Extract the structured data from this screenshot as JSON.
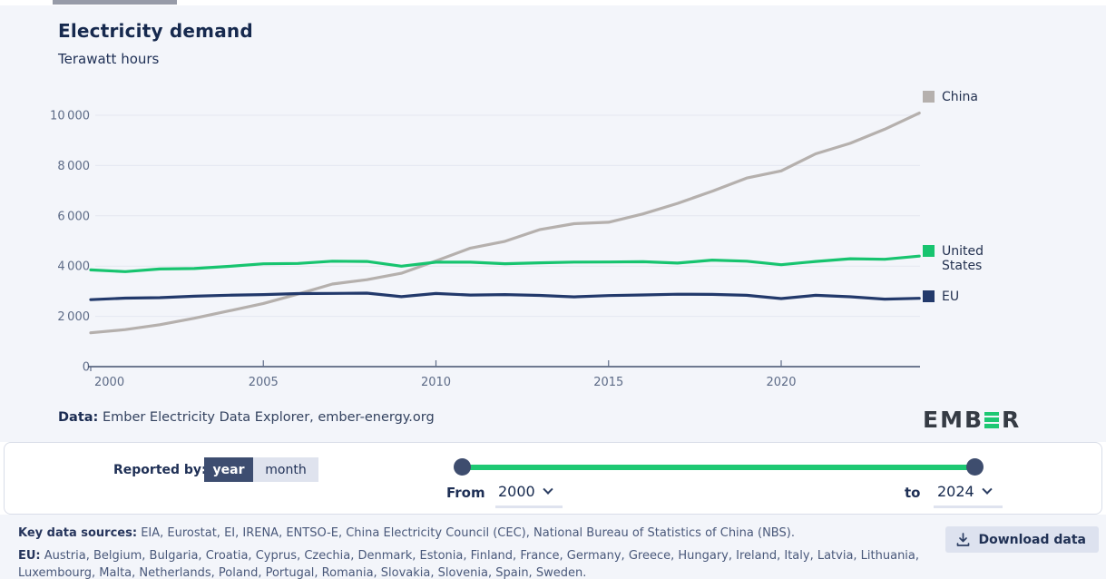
{
  "chart_data": {
    "type": "line",
    "title": "Electricity demand",
    "subtitle": "Terawatt hours",
    "xlabel": "",
    "ylabel": "Terawatt hours",
    "x": [
      2000,
      2001,
      2002,
      2003,
      2004,
      2005,
      2006,
      2007,
      2008,
      2009,
      2010,
      2011,
      2012,
      2013,
      2014,
      2015,
      2016,
      2017,
      2018,
      2019,
      2020,
      2021,
      2022,
      2023,
      2024
    ],
    "series": [
      {
        "name": "China",
        "color": "#b5b0ad",
        "values": [
          1347,
          1472,
          1668,
          1924,
          2215,
          2512,
          2886,
          3285,
          3460,
          3716,
          4207,
          4715,
          4986,
          5447,
          5687,
          5743,
          6076,
          6495,
          6977,
          7503,
          7787,
          8466,
          8886,
          9443,
          10087
        ]
      },
      {
        "name": "United States",
        "color": "#17c46f",
        "values": [
          3850,
          3780,
          3884,
          3903,
          3990,
          4089,
          4104,
          4196,
          4184,
          3995,
          4157,
          4154,
          4094,
          4130,
          4160,
          4161,
          4172,
          4118,
          4240,
          4194,
          4055,
          4185,
          4292,
          4272,
          4398
        ]
      },
      {
        "name": "EU",
        "color": "#22396b",
        "values": [
          2664,
          2725,
          2745,
          2801,
          2840,
          2865,
          2906,
          2912,
          2925,
          2783,
          2910,
          2850,
          2866,
          2835,
          2776,
          2825,
          2851,
          2880,
          2874,
          2837,
          2706,
          2838,
          2778,
          2687,
          2718
        ]
      }
    ],
    "ylim": [
      0,
      10000
    ],
    "yticks": [
      0,
      2000,
      4000,
      6000,
      8000,
      10000
    ],
    "xticks": [
      2000,
      2005,
      2010,
      2015,
      2020
    ],
    "grid": true,
    "legend_position": "right"
  },
  "attribution": {
    "label": "Data:",
    "text": " Ember Electricity Data Explorer, ember-energy.org"
  },
  "logo": {
    "prefix": "EMB",
    "suffix": "R"
  },
  "controls": {
    "reported_by_label": "Reported by:",
    "toggle": {
      "options": [
        "year",
        "month"
      ],
      "selected": "year"
    },
    "from_label": "From",
    "from_value": "2000",
    "to_label": "to",
    "to_value": "2024"
  },
  "footer": {
    "key_sources_label": "Key data sources:",
    "key_sources_text": " EIA, Eurostat, EI, IRENA, ENTSO-E, China Electricity Council (CEC), National Bureau of Statistics of China (NBS).",
    "eu_label": "EU:",
    "eu_members_text": " Austria, Belgium, Bulgaria, Croatia, Cyprus, Czechia, Denmark, Estonia, Finland, France, Germany, Greece, Hungary, Ireland, Italy, Latvia, Lithuania, Luxembourg, Malta, Netherlands, Poland, Portugal, Romania, Slovakia, Slovenia, Spain, Sweden.",
    "download_button_label": "Download data"
  }
}
